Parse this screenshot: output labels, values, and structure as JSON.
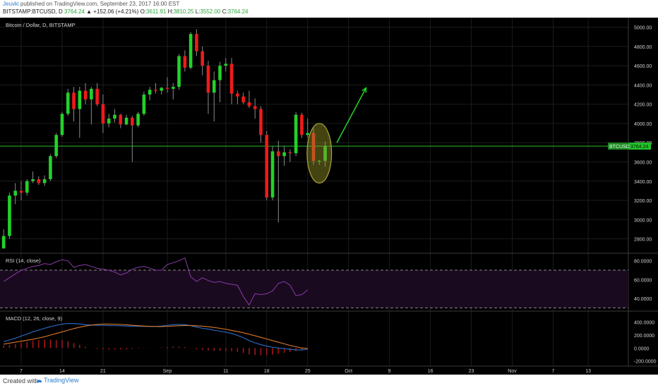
{
  "header": {
    "author": "Jeuvki",
    "published_text": "published on TradingView.com, September 23, 2017 16:00 EST",
    "symbol": "BITSTAMP:BTCUSD, D",
    "last": "3764.24",
    "change": "▲ +152.06 (+4.21%)",
    "o_label": "O:",
    "o_value": "3611.91",
    "h_label": "H:",
    "h_value": "3810.25",
    "l_label": "L:",
    "l_value": "3552.00",
    "c_label": "C:",
    "c_value": "3764.24"
  },
  "footer": {
    "created_with": "Created with",
    "brand": "TradingView"
  },
  "chart_data": [
    {
      "type": "candlestick",
      "title": "Bitcoin / Dollar, D, BITSTAMP",
      "price_tag": {
        "symbol": "BTCUSD",
        "value": "3764.24",
        "value_num": 3764.24
      },
      "ylim": [
        2650,
        5100
      ],
      "y_ticks": [
        "5000.00",
        "4800.00",
        "4600.00",
        "4400.00",
        "4200.00",
        "4000.00",
        "3800.00",
        "3600.00",
        "3400.00",
        "3200.00",
        "3000.00",
        "2800.00"
      ],
      "x_tick_labels": [
        "7",
        "14",
        "21",
        "Sep",
        "11",
        "18",
        "25",
        "Oct",
        "9",
        "16",
        "23",
        "Nov",
        "7",
        "13"
      ],
      "x_tick_days": [
        0,
        7,
        14,
        25,
        35,
        42,
        49,
        56,
        63,
        70,
        77,
        84,
        91,
        97
      ],
      "day0_x": 30,
      "day_width": 8.28,
      "candles": [
        {
          "d": -3,
          "o": 2700,
          "h": 2900,
          "l": 2700,
          "c": 2830
        },
        {
          "d": -2,
          "o": 2830,
          "h": 3280,
          "l": 2800,
          "c": 3250
        },
        {
          "d": -1,
          "o": 3250,
          "h": 3380,
          "l": 3160,
          "c": 3300
        },
        {
          "d": 0,
          "o": 3300,
          "h": 3400,
          "l": 3200,
          "c": 3280
        },
        {
          "d": 1,
          "o": 3280,
          "h": 3420,
          "l": 3250,
          "c": 3400
        },
        {
          "d": 2,
          "o": 3400,
          "h": 3500,
          "l": 3380,
          "c": 3420
        },
        {
          "d": 3,
          "o": 3420,
          "h": 3450,
          "l": 3360,
          "c": 3380
        },
        {
          "d": 4,
          "o": 3380,
          "h": 3460,
          "l": 3350,
          "c": 3420
        },
        {
          "d": 5,
          "o": 3420,
          "h": 3680,
          "l": 3400,
          "c": 3660
        },
        {
          "d": 6,
          "o": 3660,
          "h": 3900,
          "l": 3640,
          "c": 3880
        },
        {
          "d": 7,
          "o": 3880,
          "h": 4120,
          "l": 3860,
          "c": 4100
        },
        {
          "d": 8,
          "o": 4100,
          "h": 4360,
          "l": 4080,
          "c": 4320
        },
        {
          "d": 9,
          "o": 4320,
          "h": 4380,
          "l": 4020,
          "c": 4150
        },
        {
          "d": 10,
          "o": 4150,
          "h": 4380,
          "l": 3850,
          "c": 4340
        },
        {
          "d": 11,
          "o": 4340,
          "h": 4420,
          "l": 4200,
          "c": 4250
        },
        {
          "d": 12,
          "o": 4250,
          "h": 4380,
          "l": 3990,
          "c": 4360
        },
        {
          "d": 13,
          "o": 4360,
          "h": 4420,
          "l": 4180,
          "c": 4200
        },
        {
          "d": 14,
          "o": 4200,
          "h": 4300,
          "l": 3900,
          "c": 4000
        },
        {
          "d": 15,
          "o": 4000,
          "h": 4100,
          "l": 3960,
          "c": 4050
        },
        {
          "d": 16,
          "o": 4050,
          "h": 4150,
          "l": 4010,
          "c": 4090
        },
        {
          "d": 17,
          "o": 4090,
          "h": 4100,
          "l": 3950,
          "c": 3990
        },
        {
          "d": 18,
          "o": 3990,
          "h": 4090,
          "l": 3980,
          "c": 4060
        },
        {
          "d": 19,
          "o": 4060,
          "h": 4080,
          "l": 3600,
          "c": 3980
        },
        {
          "d": 20,
          "o": 3980,
          "h": 4120,
          "l": 3960,
          "c": 4100
        },
        {
          "d": 21,
          "o": 4100,
          "h": 4330,
          "l": 4080,
          "c": 4300
        },
        {
          "d": 22,
          "o": 4300,
          "h": 4380,
          "l": 4240,
          "c": 4350
        },
        {
          "d": 23,
          "o": 4350,
          "h": 4420,
          "l": 4310,
          "c": 4340
        },
        {
          "d": 24,
          "o": 4340,
          "h": 4380,
          "l": 4300,
          "c": 4370
        },
        {
          "d": 25,
          "o": 4370,
          "h": 4480,
          "l": 4320,
          "c": 4360
        },
        {
          "d": 26,
          "o": 4360,
          "h": 4420,
          "l": 4250,
          "c": 4380
        },
        {
          "d": 27,
          "o": 4380,
          "h": 4720,
          "l": 4350,
          "c": 4700
        },
        {
          "d": 28,
          "o": 4700,
          "h": 4760,
          "l": 4540,
          "c": 4580
        },
        {
          "d": 29,
          "o": 4580,
          "h": 4950,
          "l": 4560,
          "c": 4930
        },
        {
          "d": 30,
          "o": 4930,
          "h": 4980,
          "l": 4700,
          "c": 4750
        },
        {
          "d": 31,
          "o": 4750,
          "h": 4800,
          "l": 4500,
          "c": 4600
        },
        {
          "d": 32,
          "o": 4600,
          "h": 4650,
          "l": 4100,
          "c": 4320
        },
        {
          "d": 33,
          "o": 4320,
          "h": 4540,
          "l": 4020,
          "c": 4450
        },
        {
          "d": 34,
          "o": 4450,
          "h": 4640,
          "l": 4220,
          "c": 4600
        },
        {
          "d": 35,
          "o": 4600,
          "h": 4680,
          "l": 4540,
          "c": 4620
        },
        {
          "d": 36,
          "o": 4620,
          "h": 4680,
          "l": 4200,
          "c": 4310
        },
        {
          "d": 37,
          "o": 4310,
          "h": 4340,
          "l": 4200,
          "c": 4280
        },
        {
          "d": 38,
          "o": 4280,
          "h": 4320,
          "l": 4200,
          "c": 4220
        },
        {
          "d": 39,
          "o": 4220,
          "h": 4340,
          "l": 4160,
          "c": 4180
        },
        {
          "d": 40,
          "o": 4180,
          "h": 4260,
          "l": 4050,
          "c": 4150
        },
        {
          "d": 41,
          "o": 4150,
          "h": 4180,
          "l": 3800,
          "c": 3880
        },
        {
          "d": 42,
          "o": 3880,
          "h": 3920,
          "l": 3200,
          "c": 3230
        },
        {
          "d": 43,
          "o": 3230,
          "h": 3760,
          "l": 3200,
          "c": 3710
        },
        {
          "d": 44,
          "o": 3710,
          "h": 3820,
          "l": 2970,
          "c": 3660
        },
        {
          "d": 45,
          "o": 3660,
          "h": 3760,
          "l": 3560,
          "c": 3700
        },
        {
          "d": 46,
          "o": 3700,
          "h": 3730,
          "l": 3600,
          "c": 3690
        },
        {
          "d": 47,
          "o": 3690,
          "h": 4120,
          "l": 3660,
          "c": 4090
        },
        {
          "d": 48,
          "o": 4090,
          "h": 4110,
          "l": 3850,
          "c": 3880
        },
        {
          "d": 49,
          "o": 3880,
          "h": 4050,
          "l": 3850,
          "c": 3900
        },
        {
          "d": 50,
          "o": 3900,
          "h": 3950,
          "l": 3570,
          "c": 3610
        },
        {
          "d": 51,
          "o": 3610,
          "h": 3620,
          "l": 3570,
          "c": 3612
        },
        {
          "d": 52,
          "o": 3611.91,
          "h": 3810.25,
          "l": 3552.0,
          "c": 3764.24
        }
      ],
      "annotation": {
        "ellipse": {
          "d_center": 51,
          "price_center": 3690,
          "rx_days": 2.1,
          "price_half": 310
        },
        "arrow": {
          "from": {
            "d": 54,
            "price": 3800
          },
          "to": {
            "d": 59,
            "price": 4370
          }
        }
      }
    },
    {
      "type": "line",
      "title": "RSI (14, close)",
      "ylim": [
        28,
        88
      ],
      "y_ticks": [
        "80.0000",
        "60.0000",
        "40.0000"
      ],
      "bands": [
        70,
        30
      ],
      "start_day": -3,
      "values": [
        58,
        62,
        66,
        70,
        72,
        74,
        75,
        77,
        76,
        79,
        81,
        80,
        73,
        75,
        76,
        74,
        72,
        71,
        70,
        68,
        65,
        67,
        71,
        73,
        74,
        72,
        70,
        70,
        76,
        78,
        80,
        83,
        63,
        58,
        62,
        59,
        57,
        58,
        56,
        55,
        54,
        42,
        33,
        45,
        44,
        45,
        48,
        56,
        58,
        54,
        43,
        44,
        49
      ]
    },
    {
      "type": "line",
      "title": "MACD (12, 26, close, 9)",
      "ylim": [
        -280,
        560
      ],
      "y_ticks": [
        "400.0000",
        "200.0000",
        "0.0000",
        "-200.0000"
      ],
      "start_day": -3,
      "macd": [
        100,
        125,
        150,
        185,
        215,
        250,
        278,
        305,
        330,
        350,
        370,
        380,
        378,
        372,
        360,
        355,
        352,
        350,
        347,
        346,
        345,
        340,
        338,
        337,
        335,
        333,
        335,
        340,
        350,
        362,
        365,
        362,
        345,
        325,
        305,
        293,
        275,
        260,
        245,
        225,
        195,
        160,
        115,
        80,
        52,
        30,
        12,
        0,
        -10,
        -20,
        -28,
        -30,
        -18
      ],
      "signal": [
        60,
        75,
        90,
        105,
        120,
        135,
        155,
        175,
        200,
        225,
        250,
        275,
        300,
        322,
        340,
        355,
        365,
        370,
        370,
        368,
        365,
        360,
        352,
        345,
        340,
        336,
        333,
        332,
        335,
        340,
        345,
        348,
        348,
        344,
        338,
        330,
        318,
        305,
        290,
        272,
        255,
        236,
        213,
        190,
        165,
        140,
        115,
        90,
        65,
        40,
        20,
        0,
        -8
      ],
      "histogram": [
        40,
        50,
        60,
        80,
        95,
        115,
        123,
        130,
        130,
        125,
        120,
        105,
        78,
        50,
        20,
        0,
        -13,
        -20,
        -23,
        -22,
        -20,
        -20,
        -14,
        -8,
        -5,
        -3,
        2,
        8,
        15,
        22,
        20,
        14,
        -3,
        -19,
        -33,
        -37,
        -43,
        -45,
        -45,
        -47,
        -60,
        -76,
        -98,
        -110,
        -113,
        -110,
        -103,
        -90,
        -75,
        -60,
        -48,
        -30,
        -10
      ]
    }
  ]
}
